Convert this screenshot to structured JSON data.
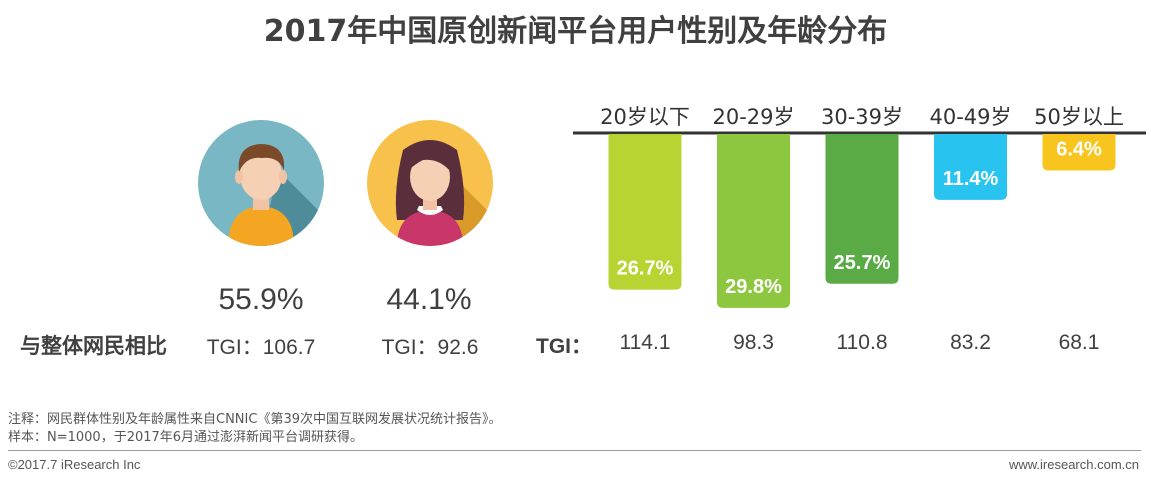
{
  "title": "2017年中国原创新闻平台用户性别及年龄分布",
  "gender": {
    "male": {
      "percent": "55.9%",
      "tgi": "TGI：106.7"
    },
    "female": {
      "percent": "44.1%",
      "tgi": "TGI：92.6"
    }
  },
  "row_label": "与整体网民相比",
  "tgi_label": "TGI：",
  "chart_data": {
    "type": "bar",
    "categories": [
      "20岁以下",
      "20-29岁",
      "30-39岁",
      "40-49岁",
      "50岁以上"
    ],
    "values": [
      26.7,
      29.8,
      25.7,
      11.4,
      6.4
    ],
    "value_labels": [
      "26.7%",
      "29.8%",
      "25.7%",
      "11.4%",
      "6.4%"
    ],
    "tgi": [
      "114.1",
      "98.3",
      "110.8",
      "83.2",
      "68.1"
    ],
    "colors": [
      "#b8d433",
      "#8dc63f",
      "#5aab46",
      "#29c3f0",
      "#f7c51e"
    ],
    "orientation": "downward",
    "ylim": [
      0,
      30
    ],
    "grid": false
  },
  "notes": [
    "注释：网民群体性别及年龄属性来自CNNIC《第39次中国互联网发展状况统计报告》。",
    "样本：N=1000，于2017年6月通过澎湃新闻平台调研获得。"
  ],
  "footer": {
    "copyright": "©2017.7 iResearch Inc",
    "website": "www.iresearch.com.cn"
  }
}
